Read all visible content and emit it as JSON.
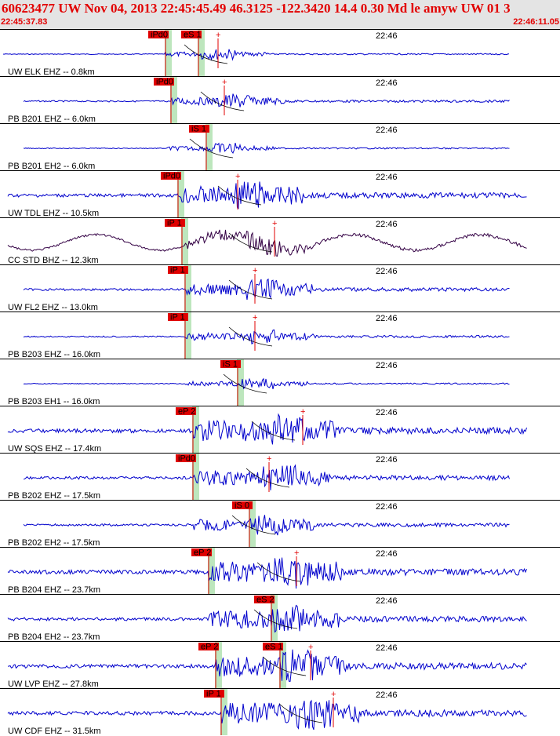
{
  "header": {
    "title": "60623477 UW Nov 04, 2013 22:45:45.49   46.3125 -122.3420 14.4 0.30 Md le amyw UW 01   3",
    "start_time": "22:45:37.83",
    "end_time": "22:46:11.05"
  },
  "time_marker_label": "22:46",
  "colors": {
    "header_bg": "#e4e4e4",
    "header_text": "#e20000",
    "waveform": "#0000cc",
    "waveform_alt": "#330044",
    "pick": "#e00000",
    "pick_window": "#bde6bd",
    "moveout": "#000000"
  },
  "traces": [
    {
      "label": "UW ELK EHZ -- 0.8km",
      "picks": [
        {
          "text": "iPd0",
          "t": 0.295
        },
        {
          "text": "eS 1",
          "t": 0.355
        }
      ],
      "wave": "blue",
      "amp": 3,
      "onset": 0.295,
      "burst": 0.36,
      "plus": 0.39
    },
    {
      "label": "PB B201 EHZ -- 6.0km",
      "picks": [
        {
          "text": "iPd0",
          "t": 0.305
        }
      ],
      "wave": "blue",
      "amp": 5,
      "onset": 0.305,
      "burst": 0.39,
      "plus": 0.4
    },
    {
      "label": "PB B201 EH2 -- 6.0km",
      "picks": [
        {
          "text": "iS 1",
          "t": 0.368
        }
      ],
      "wave": "blue",
      "amp": 3,
      "onset": 0.3,
      "burst": 0.37,
      "plus": null
    },
    {
      "label": "UW TDL EHZ -- 10.5km",
      "picks": [
        {
          "text": "iPd0",
          "t": 0.318
        }
      ],
      "wave": "blue",
      "amp": 12,
      "onset": 0.32,
      "burst": 0.42,
      "plus": 0.425
    },
    {
      "label": "CC STD BHZ -- 12.3km",
      "picks": [
        {
          "text": "iP 1",
          "t": 0.325
        }
      ],
      "wave": "purple",
      "amp": 14,
      "onset": 0.33,
      "burst": 0.44,
      "plus": 0.49
    },
    {
      "label": "UW FL2 EHZ -- 13.0km",
      "picks": [
        {
          "text": "iP 1",
          "t": 0.33
        }
      ],
      "wave": "blue",
      "amp": 8,
      "onset": 0.33,
      "burst": 0.44,
      "plus": 0.455
    },
    {
      "label": "PB B203 EHZ -- 16.0km",
      "picks": [
        {
          "text": "iP 1",
          "t": 0.33
        }
      ],
      "wave": "blue",
      "amp": 5,
      "onset": 0.33,
      "burst": 0.44,
      "plus": 0.455
    },
    {
      "label": "PB B203 EH1 -- 16.0km",
      "picks": [
        {
          "text": "iS 1",
          "t": 0.425
        }
      ],
      "wave": "blue",
      "amp": 3,
      "onset": 0.33,
      "burst": 0.43,
      "plus": null
    },
    {
      "label": "UW SQS EHZ -- 17.4km",
      "picks": [
        {
          "text": "eP 2",
          "t": 0.345
        }
      ],
      "wave": "blue",
      "amp": 14,
      "onset": 0.345,
      "burst": 0.48,
      "plus": 0.54
    },
    {
      "label": "PB B202 EHZ -- 17.5km",
      "picks": [
        {
          "text": "iPd0",
          "t": 0.345
        }
      ],
      "wave": "blue",
      "amp": 10,
      "onset": 0.345,
      "burst": 0.47,
      "plus": 0.48
    },
    {
      "label": "PB B202 EH2 -- 17.5km",
      "picks": [
        {
          "text": "iS 0",
          "t": 0.445
        }
      ],
      "wave": "blue",
      "amp": 8,
      "onset": 0.345,
      "burst": 0.445,
      "plus": null
    },
    {
      "label": "PB B204 EHZ -- 23.7km",
      "picks": [
        {
          "text": "eP 2",
          "t": 0.372
        }
      ],
      "wave": "blue",
      "amp": 14,
      "onset": 0.372,
      "burst": 0.49,
      "plus": 0.53
    },
    {
      "label": "PB B204 EH2 -- 23.7km",
      "picks": [
        {
          "text": "eS 2",
          "t": 0.485
        }
      ],
      "wave": "blue",
      "amp": 12,
      "onset": 0.372,
      "burst": 0.485,
      "plus": null
    },
    {
      "label": "UW LVP EHZ -- 27.8km",
      "picks": [
        {
          "text": "eP 2",
          "t": 0.385
        },
        {
          "text": "eS 1",
          "t": 0.5
        }
      ],
      "wave": "blue",
      "amp": 14,
      "onset": 0.385,
      "burst": 0.5,
      "plus": 0.555
    },
    {
      "label": "UW CDF EHZ -- 31.5km",
      "picks": [
        {
          "text": "iP 1",
          "t": 0.395
        }
      ],
      "wave": "blue",
      "amp": 14,
      "onset": 0.395,
      "burst": 0.53,
      "plus": 0.595
    }
  ]
}
